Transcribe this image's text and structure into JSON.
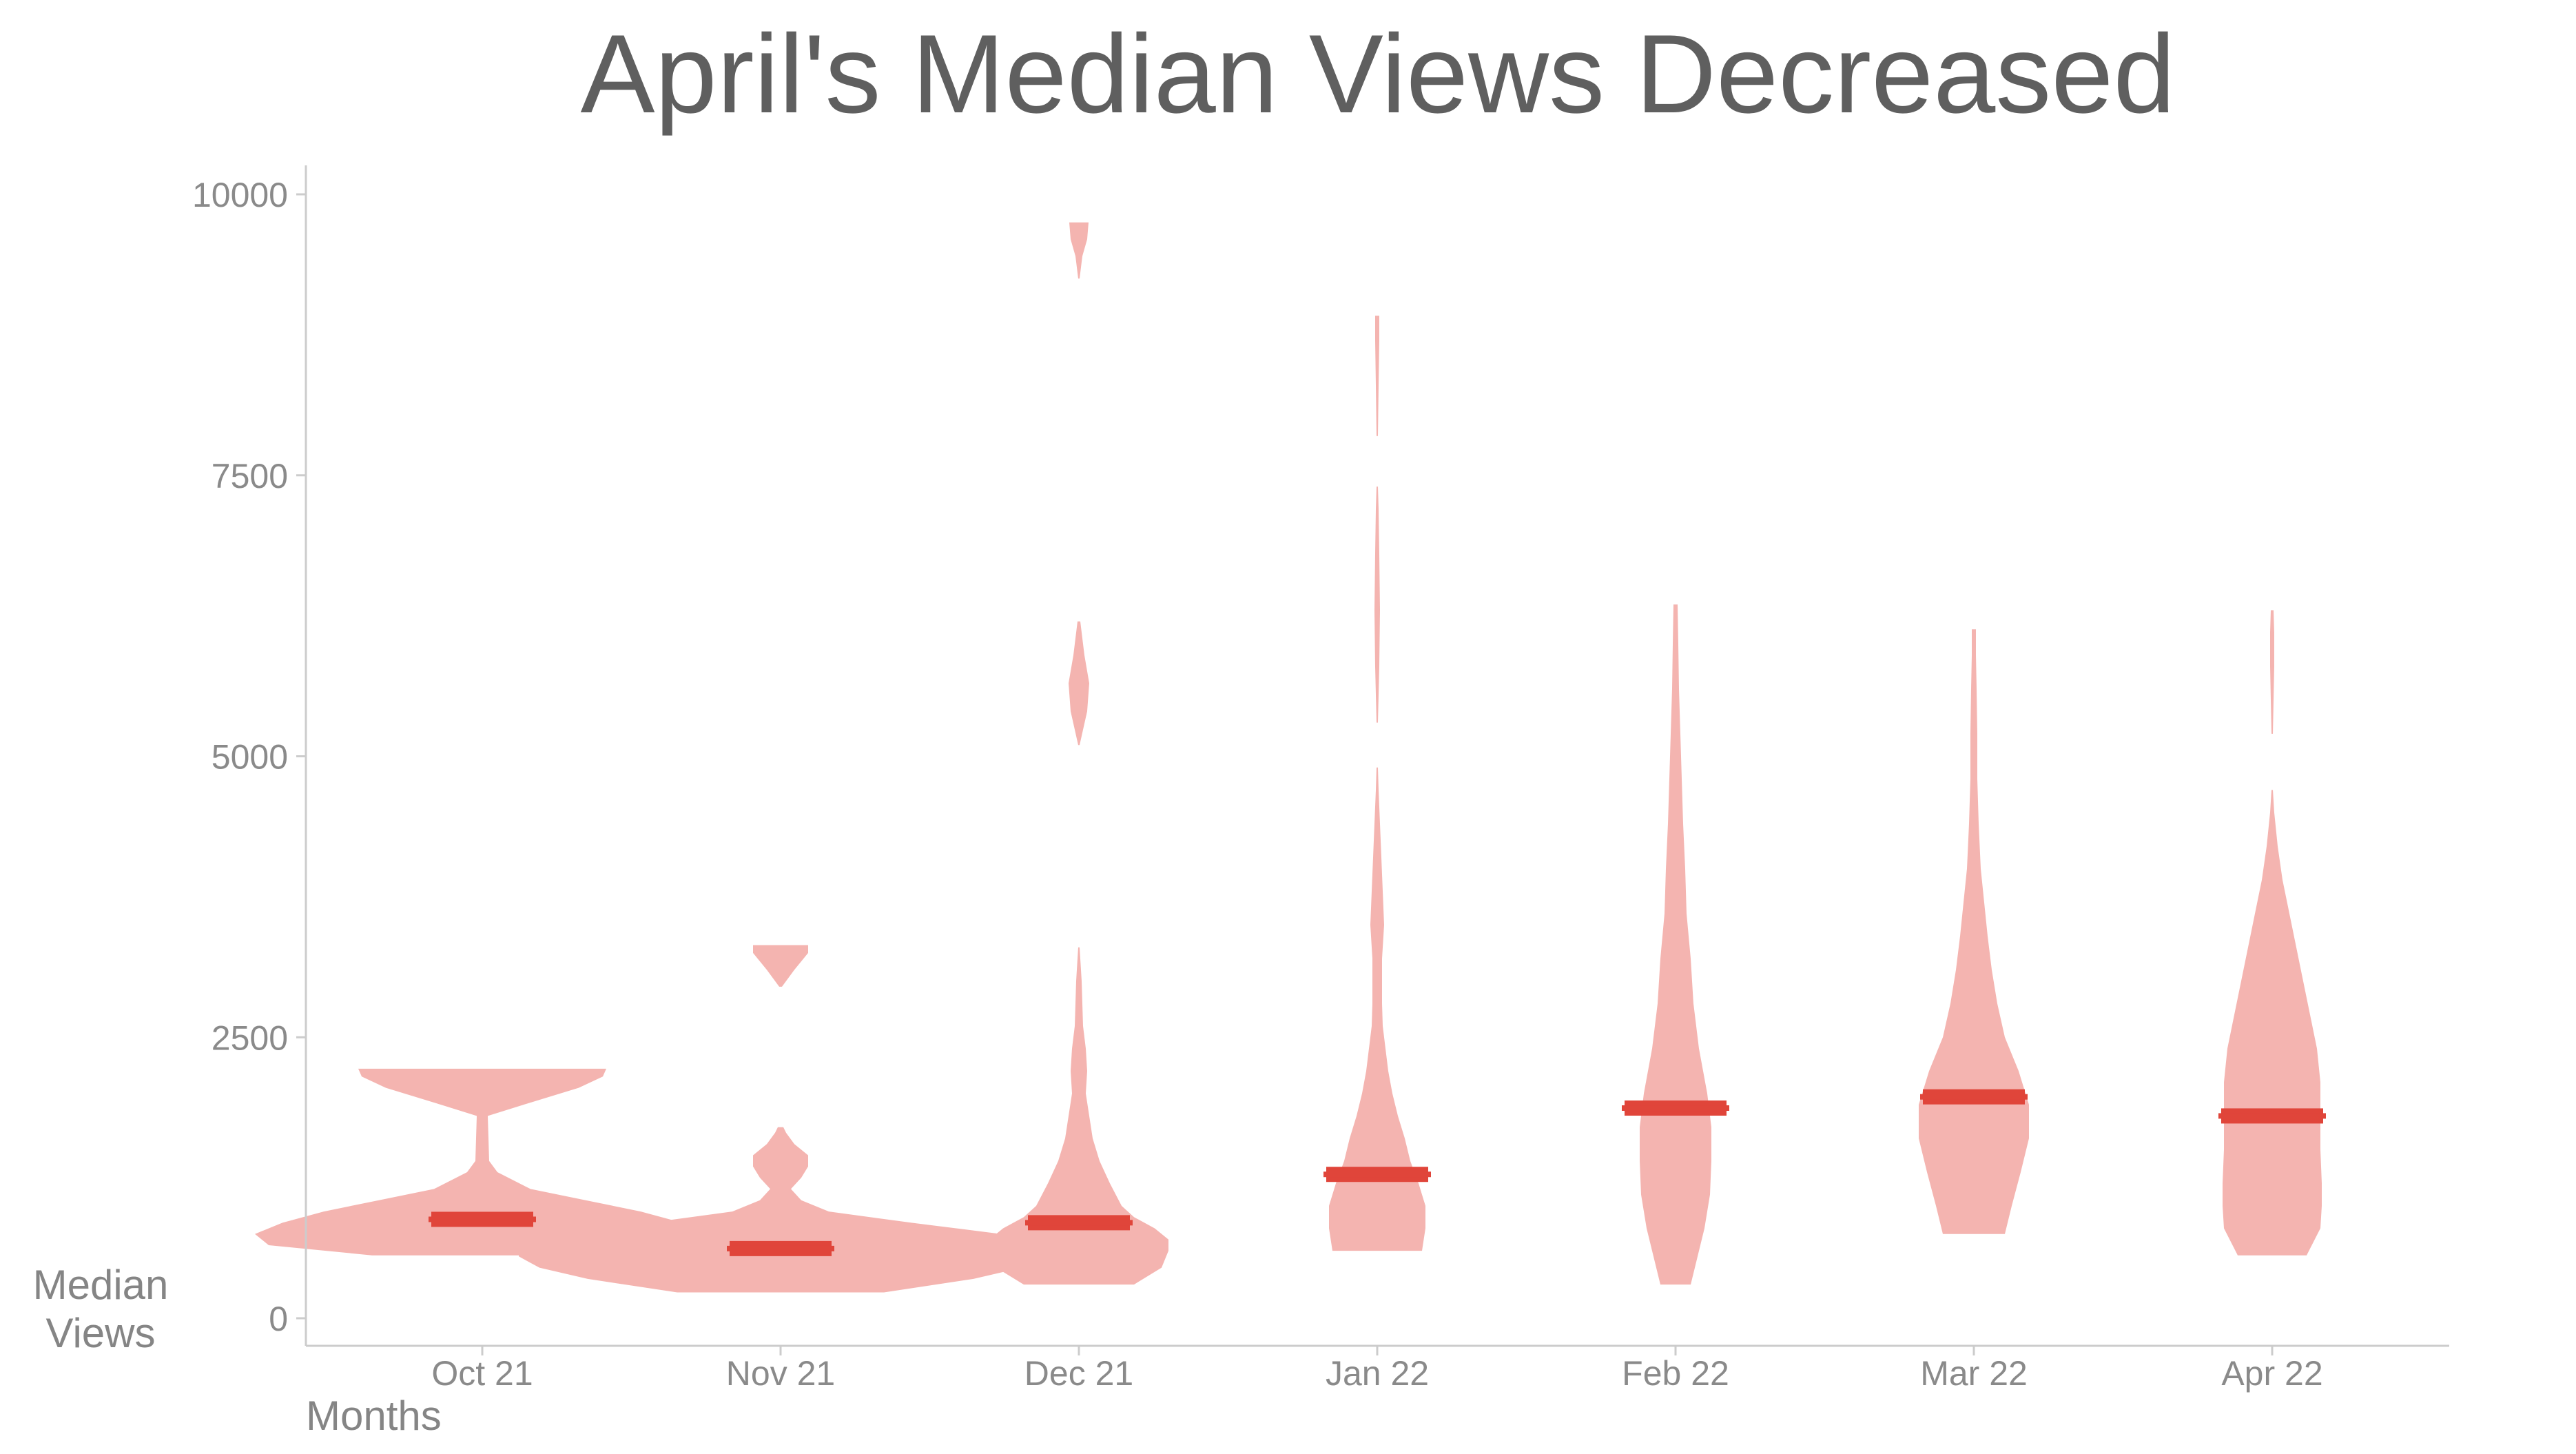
{
  "chart_data": {
    "type": "violin",
    "title": "April's Median Views Decreased",
    "xlabel": "Months",
    "ylabel": "Median Views",
    "ylim": [
      0,
      10500
    ],
    "y_ticks": [
      0,
      2500,
      5000,
      7500,
      10000
    ],
    "grid": false,
    "colors": {
      "violin": "#f4b4b0",
      "median": "#e0453a",
      "text": "#8a8a8a",
      "title": "#5f5f5f",
      "axis": "#cccccc"
    },
    "categories": [
      "Oct 21",
      "Nov 21",
      "Dec 21",
      "Jan 22",
      "Feb 22",
      "Mar 22",
      "Apr 22"
    ],
    "medians": [
      880,
      620,
      850,
      1280,
      1870,
      1970,
      1800
    ],
    "violins": [
      {
        "category": "Oct 21",
        "segments": [
          [
            [
              560,
              160
            ],
            [
              650,
              310
            ],
            [
              750,
              330
            ],
            [
              850,
              290
            ],
            [
              950,
              230
            ],
            [
              1050,
              150
            ],
            [
              1150,
              70
            ],
            [
              1300,
              22
            ],
            [
              1400,
              10
            ],
            [
              1800,
              8
            ],
            [
              1900,
              60
            ],
            [
              2050,
              140
            ],
            [
              2150,
              175
            ],
            [
              2220,
              180
            ]
          ]
        ]
      },
      {
        "category": "Nov 21",
        "segments": [
          [
            [
              230,
              150
            ],
            [
              350,
              280
            ],
            [
              450,
              350
            ],
            [
              550,
              380
            ],
            [
              650,
              380
            ],
            [
              750,
              320
            ],
            [
              850,
              190
            ],
            [
              950,
              70
            ],
            [
              1050,
              30
            ],
            [
              1150,
              15
            ],
            [
              1250,
              30
            ],
            [
              1350,
              40
            ],
            [
              1450,
              40
            ],
            [
              1550,
              20
            ],
            [
              1650,
              8
            ],
            [
              1700,
              4
            ]
          ],
          [
            [
              2950,
              2
            ],
            [
              3100,
              20
            ],
            [
              3250,
              40
            ],
            [
              3320,
              40
            ]
          ]
        ]
      },
      {
        "category": "Dec 21",
        "segments": [
          [
            [
              300,
              80
            ],
            [
              450,
              120
            ],
            [
              600,
              130
            ],
            [
              700,
              130
            ],
            [
              800,
              110
            ],
            [
              900,
              80
            ],
            [
              1000,
              62
            ],
            [
              1200,
              45
            ],
            [
              1400,
              30
            ],
            [
              1600,
              20
            ],
            [
              1800,
              15
            ],
            [
              2000,
              10
            ],
            [
              2200,
              12
            ],
            [
              2400,
              10
            ],
            [
              2600,
              6
            ],
            [
              2800,
              5
            ],
            [
              3000,
              4
            ],
            [
              3200,
              2
            ],
            [
              3300,
              1
            ]
          ],
          [
            [
              5100,
              1
            ],
            [
              5400,
              12
            ],
            [
              5650,
              15
            ],
            [
              5900,
              8
            ],
            [
              6200,
              2
            ]
          ],
          [
            [
              9250,
              1
            ],
            [
              9450,
              5
            ],
            [
              9600,
              12
            ],
            [
              9750,
              14
            ]
          ]
        ]
      },
      {
        "category": "Jan 22",
        "segments": [
          [
            [
              600,
              65
            ],
            [
              800,
              70
            ],
            [
              1000,
              70
            ],
            [
              1200,
              60
            ],
            [
              1400,
              48
            ],
            [
              1600,
              40
            ],
            [
              1800,
              30
            ],
            [
              2000,
              22
            ],
            [
              2200,
              16
            ],
            [
              2400,
              12
            ],
            [
              2600,
              8
            ],
            [
              2800,
              7
            ],
            [
              3000,
              7
            ],
            [
              3200,
              7
            ],
            [
              3500,
              10
            ],
            [
              3800,
              8
            ],
            [
              4100,
              6
            ],
            [
              4400,
              4
            ],
            [
              4700,
              2
            ],
            [
              4900,
              1
            ]
          ],
          [
            [
              5300,
              1
            ],
            [
              5800,
              3
            ],
            [
              6300,
              4
            ],
            [
              6800,
              3
            ],
            [
              7200,
              2
            ],
            [
              7400,
              1
            ]
          ],
          [
            [
              7850,
              1
            ],
            [
              8300,
              2
            ],
            [
              8700,
              3
            ],
            [
              8920,
              3
            ]
          ]
        ]
      },
      {
        "category": "Feb 22",
        "segments": [
          [
            [
              300,
              22
            ],
            [
              500,
              30
            ],
            [
              800,
              42
            ],
            [
              1100,
              50
            ],
            [
              1400,
              52
            ],
            [
              1700,
              52
            ],
            [
              2000,
              46
            ],
            [
              2400,
              34
            ],
            [
              2800,
              26
            ],
            [
              3200,
              22
            ],
            [
              3600,
              16
            ],
            [
              4000,
              14
            ],
            [
              4400,
              11
            ],
            [
              4800,
              9
            ],
            [
              5200,
              7
            ],
            [
              5600,
              5
            ],
            [
              6000,
              4
            ],
            [
              6350,
              3
            ]
          ]
        ]
      },
      {
        "category": "Mar 22",
        "segments": [
          [
            [
              750,
              45
            ],
            [
              1000,
              55
            ],
            [
              1300,
              68
            ],
            [
              1600,
              80
            ],
            [
              1900,
              80
            ],
            [
              2200,
              65
            ],
            [
              2500,
              45
            ],
            [
              2800,
              34
            ],
            [
              3100,
              26
            ],
            [
              3400,
              20
            ],
            [
              3700,
              15
            ],
            [
              4000,
              10
            ],
            [
              4400,
              7
            ],
            [
              4800,
              5
            ],
            [
              5200,
              5
            ],
            [
              5600,
              4
            ],
            [
              5900,
              3
            ],
            [
              6130,
              3
            ]
          ]
        ]
      },
      {
        "category": "Apr 22",
        "segments": [
          [
            [
              560,
              50
            ],
            [
              800,
              70
            ],
            [
              1000,
              72
            ],
            [
              1200,
              72
            ],
            [
              1500,
              70
            ],
            [
              1800,
              70
            ],
            [
              2100,
              70
            ],
            [
              2400,
              65
            ],
            [
              2700,
              55
            ],
            [
              3000,
              45
            ],
            [
              3300,
              35
            ],
            [
              3600,
              25
            ],
            [
              3900,
              15
            ],
            [
              4200,
              8
            ],
            [
              4500,
              3
            ],
            [
              4700,
              1
            ]
          ],
          [
            [
              5200,
              1
            ],
            [
              5500,
              2
            ],
            [
              5800,
              3
            ],
            [
              6100,
              3
            ],
            [
              6300,
              2
            ]
          ]
        ]
      }
    ]
  }
}
